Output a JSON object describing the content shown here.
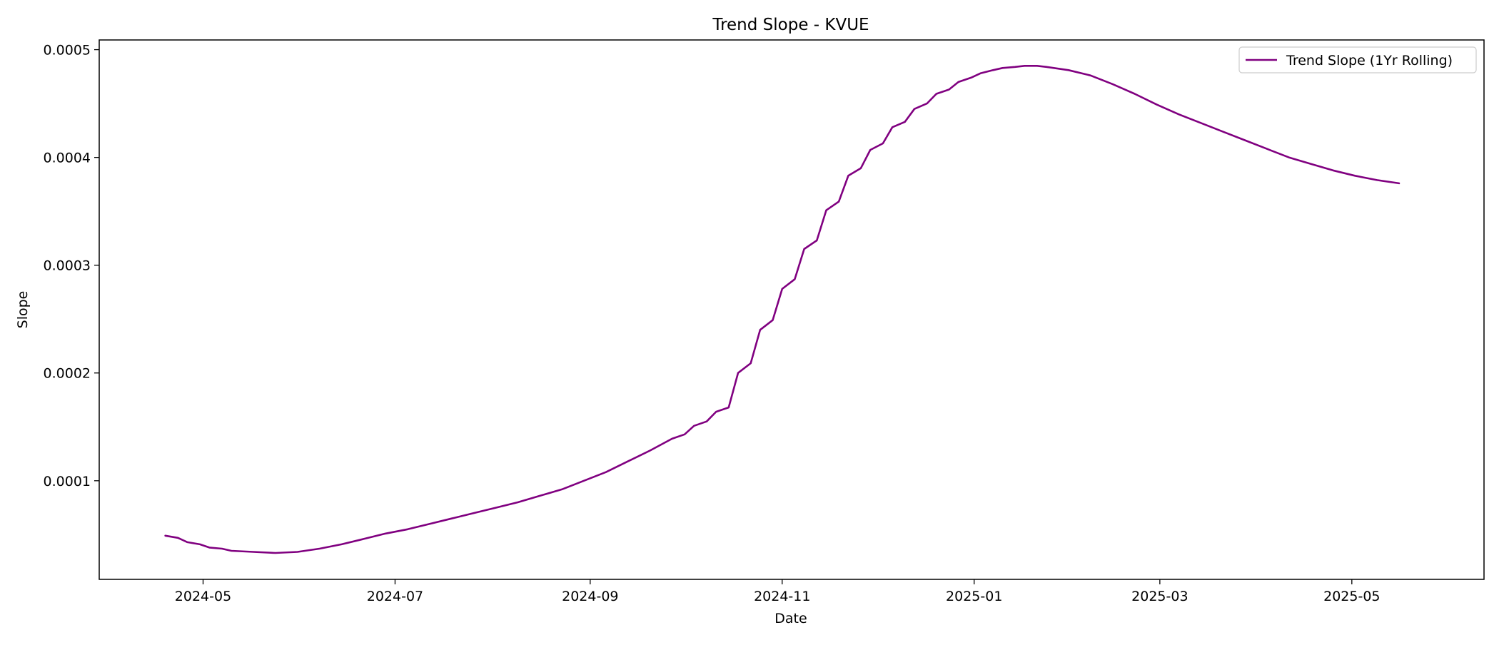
{
  "chart_data": {
    "type": "line",
    "title": "Trend Slope - KVUE",
    "xlabel": "Date",
    "ylabel": "Slope",
    "xlim": [
      "2024-03-29",
      "2025-06-12"
    ],
    "ylim": [
      8.5e-06,
      0.000509
    ],
    "x_ticks": [
      "2024-05",
      "2024-07",
      "2024-09",
      "2024-11",
      "2025-01",
      "2025-03",
      "2025-05"
    ],
    "y_ticks": [
      "0.0001",
      "0.0002",
      "0.0003",
      "0.0004",
      "0.0005"
    ],
    "grid": false,
    "legend_position": "top-right",
    "colors": {
      "series": "#800080",
      "axes": "#000000",
      "legend_border": "#cccccc"
    },
    "series": [
      {
        "name": "Trend Slope (1Yr Rolling)",
        "color": "#800080",
        "x": [
          "2024-04-19",
          "2024-04-23",
          "2024-04-26",
          "2024-04-30",
          "2024-05-03",
          "2024-05-07",
          "2024-05-10",
          "2024-05-17",
          "2024-05-24",
          "2024-05-31",
          "2024-06-07",
          "2024-06-14",
          "2024-06-21",
          "2024-06-28",
          "2024-07-05",
          "2024-07-12",
          "2024-07-19",
          "2024-07-26",
          "2024-08-02",
          "2024-08-09",
          "2024-08-16",
          "2024-08-23",
          "2024-08-30",
          "2024-09-06",
          "2024-09-13",
          "2024-09-20",
          "2024-09-27",
          "2024-10-01",
          "2024-10-04",
          "2024-10-08",
          "2024-10-11",
          "2024-10-15",
          "2024-10-18",
          "2024-10-22",
          "2024-10-25",
          "2024-10-29",
          "2024-11-01",
          "2024-11-05",
          "2024-11-08",
          "2024-11-12",
          "2024-11-15",
          "2024-11-19",
          "2024-11-22",
          "2024-11-26",
          "2024-11-29",
          "2024-12-03",
          "2024-12-06",
          "2024-12-10",
          "2024-12-13",
          "2024-12-17",
          "2024-12-20",
          "2024-12-24",
          "2024-12-27",
          "2024-12-31",
          "2025-01-03",
          "2025-01-07",
          "2025-01-10",
          "2025-01-14",
          "2025-01-17",
          "2025-01-21",
          "2025-01-24",
          "2025-01-31",
          "2025-02-07",
          "2025-02-14",
          "2025-02-21",
          "2025-02-28",
          "2025-03-07",
          "2025-03-14",
          "2025-03-21",
          "2025-03-28",
          "2025-04-04",
          "2025-04-11",
          "2025-04-18",
          "2025-04-25",
          "2025-05-02",
          "2025-05-09",
          "2025-05-16"
        ],
        "y": [
          4.9e-05,
          4.7e-05,
          4.3e-05,
          4.1e-05,
          3.8e-05,
          3.7e-05,
          3.5e-05,
          3.4e-05,
          3.3e-05,
          3.4e-05,
          3.7e-05,
          4.1e-05,
          4.6e-05,
          5.1e-05,
          5.5e-05,
          6e-05,
          6.5e-05,
          7e-05,
          7.5e-05,
          8e-05,
          8.6e-05,
          9.2e-05,
          0.0001,
          0.000108,
          0.000118,
          0.000128,
          0.000139,
          0.000143,
          0.000151,
          0.000155,
          0.000164,
          0.000168,
          0.0002,
          0.000209,
          0.00024,
          0.000249,
          0.000278,
          0.000287,
          0.000315,
          0.000323,
          0.000351,
          0.000359,
          0.000383,
          0.00039,
          0.000407,
          0.000413,
          0.000428,
          0.000433,
          0.000445,
          0.00045,
          0.000459,
          0.000463,
          0.00047,
          0.000474,
          0.000478,
          0.000481,
          0.000483,
          0.000484,
          0.000485,
          0.000485,
          0.000484,
          0.000481,
          0.000476,
          0.000468,
          0.000459,
          0.000449,
          0.00044,
          0.000432,
          0.000424,
          0.000416,
          0.000408,
          0.0004,
          0.000394,
          0.000388,
          0.000383,
          0.000379,
          0.000376
        ]
      }
    ]
  }
}
